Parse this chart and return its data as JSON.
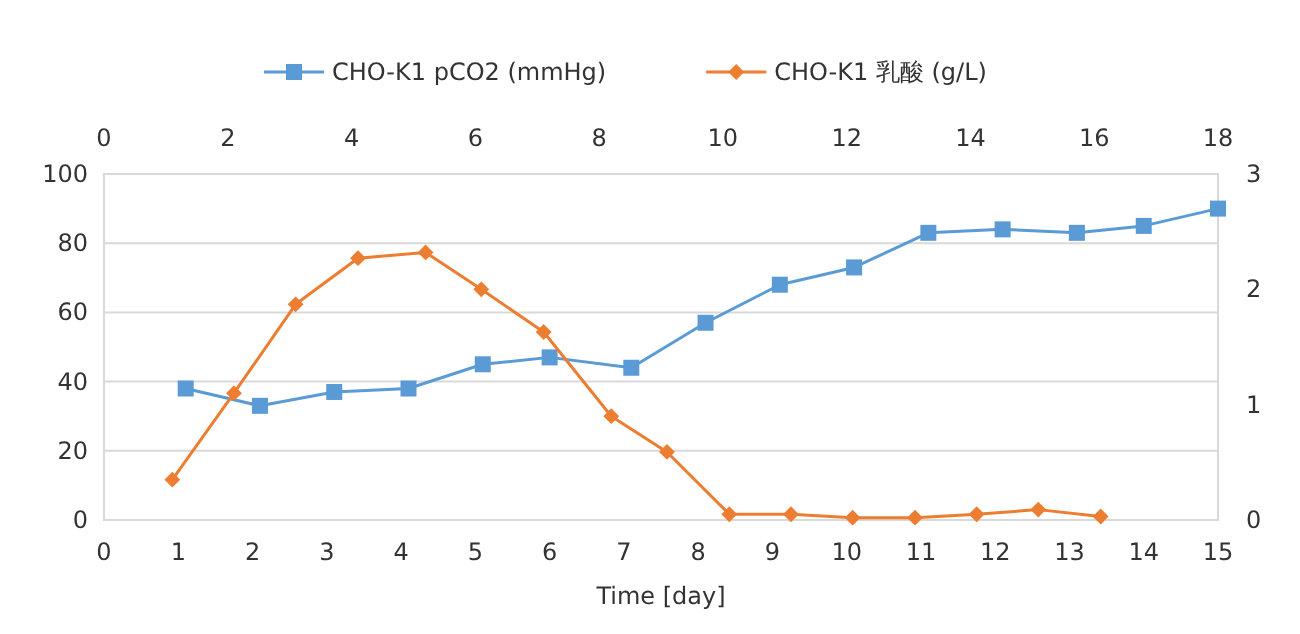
{
  "chart_data": {
    "type": "line",
    "xlabel": "Time [day]",
    "xlim": [
      0,
      15
    ],
    "xticks": [
      0,
      1,
      2,
      3,
      4,
      5,
      6,
      7,
      8,
      9,
      10,
      11,
      12,
      13,
      14,
      15
    ],
    "x2lim": [
      0,
      18
    ],
    "x2ticks": [
      0,
      2,
      4,
      6,
      8,
      10,
      12,
      14,
      16,
      18
    ],
    "ylim": [
      0,
      100
    ],
    "yticks": [
      0,
      20,
      40,
      60,
      80,
      100
    ],
    "y2lim": [
      0,
      3
    ],
    "y2ticks": [
      0,
      1,
      2,
      3
    ],
    "grid": "y",
    "legend": "top",
    "series": [
      {
        "name": "CHO-K1 pCO2 (mmHg)",
        "color": "#5b9bd5",
        "marker": "square",
        "x": [
          1.1,
          2.1,
          3.1,
          4.1,
          5.1,
          6.0,
          7.1,
          8.1,
          9.1,
          10.1,
          11.1,
          12.1,
          13.1,
          14.0,
          15.0
        ],
        "values": [
          38,
          33,
          37,
          38,
          45,
          47,
          44,
          57,
          68,
          73,
          83,
          84,
          83,
          85,
          90
        ]
      },
      {
        "name": "CHO-K1 乳酸 (g/L)",
        "color": "#ed7d31",
        "marker": "diamond",
        "axis": "y2",
        "x": [
          0.92,
          1.75,
          2.58,
          3.42,
          4.33,
          5.08,
          5.92,
          6.83,
          7.58,
          8.42,
          9.25,
          10.08,
          10.92,
          11.75,
          12.58,
          13.42
        ],
        "values": [
          0.35,
          1.1,
          1.87,
          2.27,
          2.32,
          2.0,
          1.63,
          0.9,
          0.59,
          0.05,
          0.05,
          0.02,
          0.02,
          0.05,
          0.09,
          0.03
        ]
      }
    ]
  }
}
